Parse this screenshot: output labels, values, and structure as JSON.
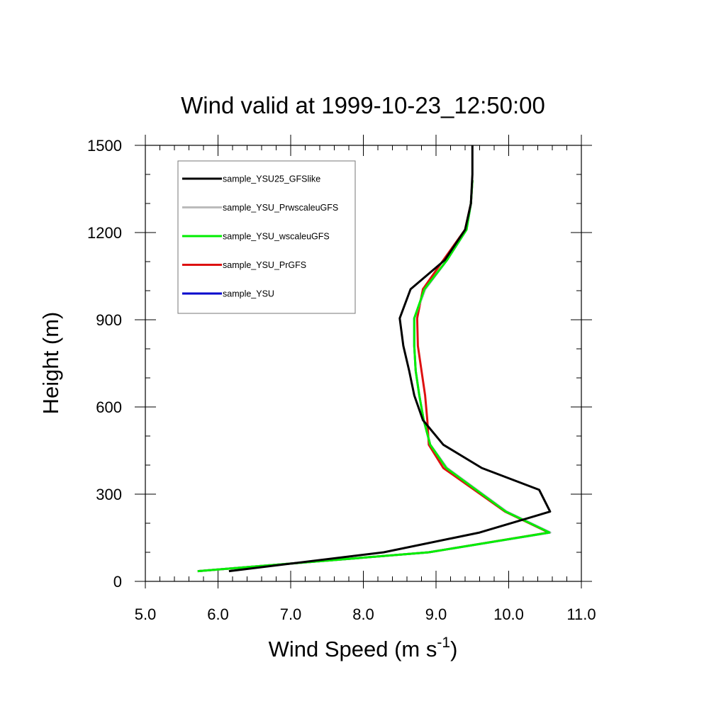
{
  "chart_data": {
    "type": "line",
    "title": "Wind valid at 1999-10-23_12:50:00",
    "xlabel": "Wind Speed (m s",
    "xlabel_superscript": "-1",
    "xlabel_suffix": ")",
    "ylabel": "Height (m)",
    "xlim": [
      5.0,
      11.0
    ],
    "ylim": [
      0,
      1500
    ],
    "xticks": [
      5.0,
      6.0,
      7.0,
      8.0,
      9.0,
      10.0,
      11.0
    ],
    "xtick_labels": [
      "5.0",
      "6.0",
      "7.0",
      "8.0",
      "9.0",
      "10.0",
      "11.0"
    ],
    "yticks": [
      0,
      300,
      600,
      900,
      1200,
      1500
    ],
    "ytick_labels": [
      "0",
      "300",
      "600",
      "900",
      "1200",
      "1500"
    ],
    "grid": false,
    "legend_position": "top-left",
    "series": [
      {
        "name": "sample_YSU25_GFSlike",
        "color": "#000000",
        "x": [
          6.15,
          8.28,
          9.6,
          10.57,
          10.42,
          9.63,
          9.1,
          8.82,
          8.7,
          8.63,
          8.55,
          8.5,
          8.65,
          9.12,
          9.4,
          9.48,
          9.5,
          9.5
        ],
        "y": [
          35,
          100,
          168,
          240,
          315,
          390,
          470,
          555,
          640,
          725,
          810,
          905,
          1005,
          1105,
          1210,
          1300,
          1400,
          1500
        ]
      },
      {
        "name": "sample_YSU_PrwscaleuGFS",
        "color": "#bbbbbb",
        "x": [
          5.72,
          8.9,
          10.57,
          9.97,
          9.15,
          8.92,
          8.83,
          8.77,
          8.72,
          8.7,
          8.7,
          8.85,
          9.15,
          9.42,
          9.48,
          9.5
        ],
        "y": [
          35,
          100,
          168,
          240,
          390,
          470,
          555,
          640,
          725,
          810,
          905,
          1005,
          1105,
          1210,
          1300,
          1380
        ]
      },
      {
        "name": "sample_YSU_wscaleuGFS",
        "color": "#00ee00",
        "x": [
          5.72,
          8.9,
          10.56,
          9.96,
          9.14,
          8.92,
          8.83,
          8.77,
          8.72,
          8.7,
          8.7,
          8.84,
          9.15,
          9.42,
          9.48,
          9.5
        ],
        "y": [
          35,
          100,
          168,
          240,
          390,
          470,
          555,
          640,
          725,
          810,
          905,
          1005,
          1105,
          1210,
          1300,
          1380
        ]
      },
      {
        "name": "sample_YSU_PrGFS",
        "color": "#dd1111",
        "x": [
          5.72,
          8.9,
          10.55,
          9.95,
          9.1,
          8.9,
          8.88,
          8.85,
          8.8,
          8.75,
          8.74,
          8.82,
          9.1,
          9.4,
          9.48,
          9.5
        ],
        "y": [
          35,
          100,
          168,
          240,
          390,
          470,
          555,
          640,
          725,
          810,
          905,
          1005,
          1105,
          1210,
          1300,
          1380
        ]
      },
      {
        "name": "sample_YSU",
        "color": "#0000cc",
        "x": [
          5.72,
          8.9,
          10.57,
          9.97,
          9.15,
          8.92,
          8.83,
          8.77,
          8.72,
          8.7,
          8.7,
          8.85,
          9.15,
          9.42,
          9.48,
          9.5
        ],
        "y": [
          35,
          100,
          168,
          240,
          390,
          470,
          555,
          640,
          725,
          810,
          905,
          1005,
          1105,
          1210,
          1300,
          1380
        ]
      }
    ],
    "draw_order": [
      4,
      3,
      1,
      2,
      0
    ]
  }
}
